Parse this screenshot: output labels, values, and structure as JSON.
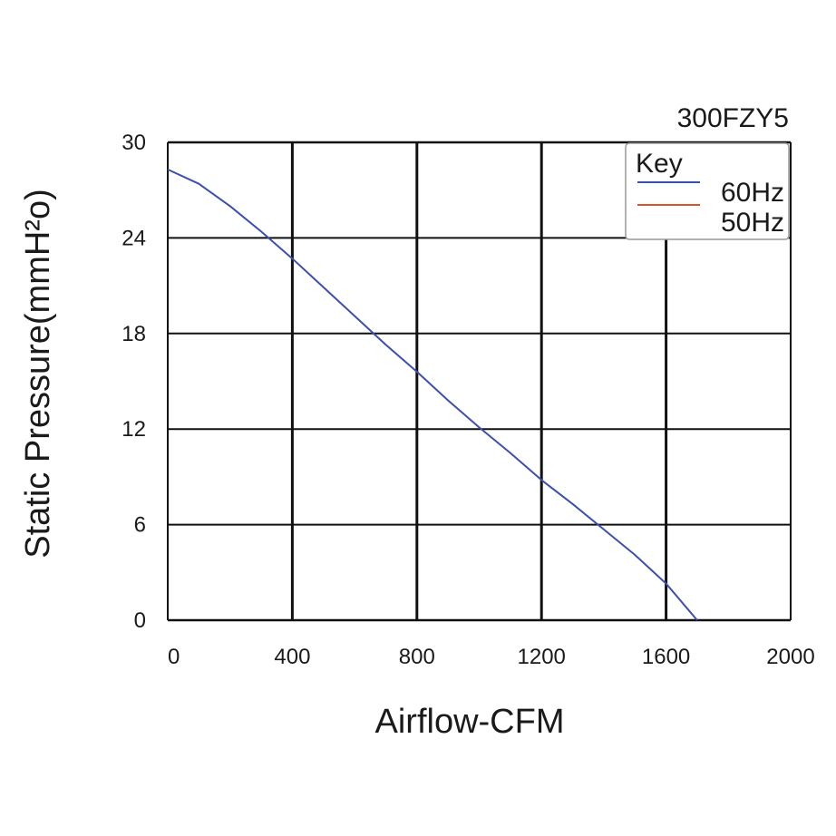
{
  "chart_data": {
    "type": "line",
    "model": "300FZY5",
    "xlabel": "Airflow-CFM",
    "ylabel": "Static Pressure(mmH²o)",
    "xlim": [
      0,
      2000
    ],
    "ylim": [
      0,
      30
    ],
    "xticks": [
      0,
      400,
      800,
      1200,
      1600,
      2000
    ],
    "yticks": [
      0,
      6,
      12,
      18,
      24,
      30
    ],
    "grid": true,
    "legend": {
      "title": "Key",
      "placement": "top-right",
      "entries": [
        {
          "name": "60Hz",
          "color": "#3b4fb0"
        },
        {
          "name": "50Hz",
          "color": "#d9532c"
        }
      ]
    },
    "series": [
      {
        "name": "60Hz",
        "color": "#3b4fb0",
        "x": [
          0,
          100,
          200,
          300,
          400,
          500,
          600,
          700,
          800,
          900,
          1000,
          1100,
          1200,
          1300,
          1400,
          1500,
          1600,
          1700
        ],
        "y": [
          28.3,
          27.4,
          26.0,
          24.4,
          22.7,
          20.9,
          19.1,
          17.3,
          15.6,
          13.8,
          12.1,
          10.5,
          8.8,
          7.3,
          5.7,
          4.1,
          2.3,
          0.0
        ]
      },
      {
        "name": "50Hz",
        "color": "#d9532c",
        "x": [],
        "y": []
      }
    ]
  }
}
